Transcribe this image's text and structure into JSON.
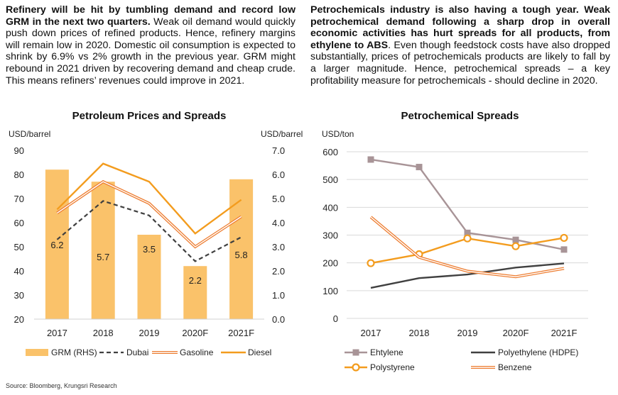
{
  "text": {
    "left_bold": "Refinery will be hit by tumbling demand and record low GRM in the next two quarters.",
    "left_body": " Weak oil demand would quickly push down prices of refined products. Hence, refinery margins will remain low in 2020. Domestic oil consumption is expected to shrink by 6.9% vs 2% growth in the previous year. GRM might rebound in 2021 driven by recovering demand and cheap crude. This means refiners’ revenues could improve in 2021.",
    "right_bold": "Petrochemicals industry is also having a tough year. Weak petrochemical demand following a sharp drop in overall economic activities has hurt spreads for all products, from ethylene to ABS",
    "right_body": ". Even though feedstock costs have also dropped substantially, prices of petrochemicals products are likely to fall by a larger magnitude. Hence, petrochemical spreads – a key profitability measure for petrochemicals - should decline in 2020.",
    "source": "Source: Bloomberg, Krungsri Research"
  },
  "colors": {
    "grm": "#fac26a",
    "dubai": "#404040",
    "gasoline": "#ed7d31",
    "diesel": "#f39c1e",
    "ehtylene": "#a89497",
    "polyethylene": "#404040",
    "polystyrene": "#f39c1e",
    "benzene": "#ed7d31"
  },
  "chart_data": [
    {
      "type": "bar",
      "title": "Petroleum Prices and Spreads",
      "ylabel_left": "USD/barrel",
      "ylabel_right": "USD/barrel",
      "categories": [
        "2017",
        "2018",
        "2019",
        "2020F",
        "2021F"
      ],
      "ylim_left": [
        20,
        90
      ],
      "yticks_left": [
        "20",
        "30",
        "40",
        "50",
        "60",
        "70",
        "80",
        "90"
      ],
      "ylim_right": [
        0,
        7
      ],
      "yticks_right": [
        "0.0",
        "1.0",
        "2.0",
        "3.0",
        "4.0",
        "5.0",
        "6.0",
        "7.0"
      ],
      "series": [
        {
          "name": "GRM (RHS)",
          "type": "bar",
          "axis": "right",
          "values": [
            6.2,
            5.7,
            3.5,
            2.2,
            5.8
          ],
          "labels": [
            "6.2",
            "5.7",
            "3.5",
            "2.2",
            "5.8"
          ]
        },
        {
          "name": "Dubai",
          "type": "line",
          "style": "dashed",
          "axis": "left",
          "values": [
            53,
            69,
            63,
            44,
            54
          ]
        },
        {
          "name": "Gasoline",
          "type": "line",
          "style": "double",
          "axis": "left",
          "values": [
            64,
            77,
            68,
            50,
            62.5
          ]
        },
        {
          "name": "Diesel",
          "type": "line",
          "style": "solid",
          "axis": "left",
          "values": [
            65.5,
            84.5,
            77,
            55.5,
            69.5
          ]
        }
      ],
      "grid": false,
      "legend": "bottom"
    },
    {
      "type": "line",
      "title": "Petrochemical Spreads",
      "ylabel": "USD/ton",
      "categories": [
        "2017",
        "2018",
        "2019",
        "2020F",
        "2021F"
      ],
      "ylim": [
        0,
        600
      ],
      "yticks": [
        "0",
        "100",
        "200",
        "300",
        "400",
        "500",
        "600"
      ],
      "series": [
        {
          "name": "Ehtylene",
          "marker": "square",
          "values": [
            572,
            545,
            308,
            283,
            248
          ]
        },
        {
          "name": "Polyethylene (HDPE)",
          "marker": "none",
          "values": [
            110,
            145,
            158,
            183,
            198
          ]
        },
        {
          "name": "Polystyrene",
          "marker": "circle",
          "values": [
            199,
            231,
            288,
            260,
            290
          ]
        },
        {
          "name": "Benzene",
          "marker": "none",
          "style": "double",
          "values": [
            365,
            220,
            170,
            150,
            180
          ]
        }
      ],
      "grid": true,
      "legend": "bottom"
    }
  ]
}
